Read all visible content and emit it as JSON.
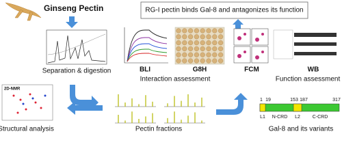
{
  "header": {
    "title": "Ginseng Pectin",
    "claim": "RG-I pectin binds Gal-8 and antagonizes its function"
  },
  "steps": {
    "separation": "Separation & digestion",
    "interaction": "Interaction assessment",
    "function": "Function assessment",
    "structural": "Structural analysis",
    "fractions": "Pectin fractions",
    "variants": "Gal-8 and its variants"
  },
  "panels": {
    "bli": "BLI",
    "g8h": "G8H",
    "fcm": "FCM",
    "wb": "WB",
    "nmr": "2D-NMR"
  },
  "domain": {
    "positions": [
      "1",
      "19",
      "153",
      "187",
      "317"
    ],
    "segments": [
      "L1",
      "N-CRD",
      "L2",
      "C-CRD"
    ]
  }
}
